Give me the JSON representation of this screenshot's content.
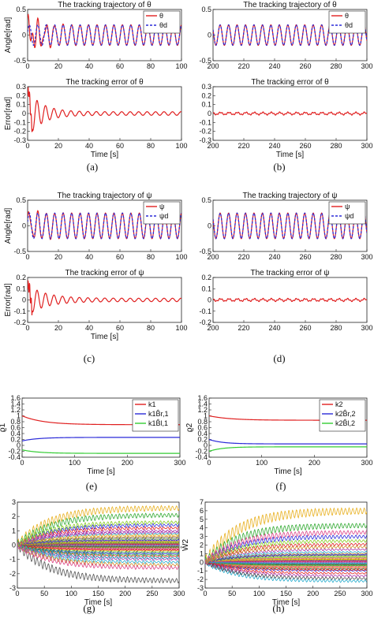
{
  "figure": {
    "captions": [
      "(a)",
      "(b)",
      "(c)",
      "(d)",
      "(e)",
      "(f)",
      "(g)",
      "(h)"
    ]
  },
  "chart_data": [
    {
      "id": "a_top",
      "type": "line",
      "title": "The tracking trajectory of θ",
      "ylabel": "Angle[rad]",
      "xlabel": "",
      "xlim": [
        0,
        100
      ],
      "ylim": [
        -0.5,
        0.5
      ],
      "xticks": [
        0,
        20,
        40,
        60,
        80,
        100
      ],
      "yticks": [
        -0.5,
        0,
        0.5
      ],
      "legend": {
        "position": "top-right",
        "entries": [
          "θ",
          "θd"
        ]
      },
      "series": [
        {
          "name": "θ",
          "color": "#e02020",
          "kind": "sine",
          "amp": 0.2,
          "period": 5.5,
          "transient_amp": 0.3,
          "transient_tau": 8,
          "x_start": 0,
          "x_end": 100
        },
        {
          "name": "θd",
          "color": "#2a2ad8",
          "dash": true,
          "kind": "sine",
          "amp": 0.2,
          "period": 5.5,
          "x_start": 0,
          "x_end": 100
        }
      ]
    },
    {
      "id": "a_bottom",
      "type": "line",
      "title": "The tracking error of θ",
      "ylabel": "Error[rad]",
      "xlabel": "Time [s]",
      "xlim": [
        0,
        100
      ],
      "ylim": [
        -0.3,
        0.3
      ],
      "xticks": [
        0,
        20,
        40,
        60,
        80,
        100
      ],
      "yticks": [
        -0.3,
        -0.2,
        -0.1,
        0,
        0.1,
        0.2,
        0.3
      ],
      "series": [
        {
          "name": "",
          "color": "#e02020",
          "kind": "decay",
          "amp": 0.25,
          "tau": 9,
          "period": 5.5,
          "floor": 0.02,
          "x_start": 0,
          "x_end": 100
        }
      ]
    },
    {
      "id": "b_top",
      "type": "line",
      "title": "The tracking trajectory of θ",
      "ylabel": "",
      "xlabel": "",
      "xlim": [
        200,
        300
      ],
      "ylim": [
        -0.5,
        0.5
      ],
      "xticks": [
        200,
        220,
        240,
        260,
        280,
        300
      ],
      "yticks": [
        -0.5,
        0,
        0.5
      ],
      "legend": {
        "position": "top-right",
        "entries": [
          "θ",
          "θd"
        ]
      },
      "series": [
        {
          "name": "θ",
          "color": "#e02020",
          "kind": "sine",
          "amp": 0.2,
          "period": 5.5,
          "x_start": 200,
          "x_end": 300
        },
        {
          "name": "θd",
          "color": "#2a2ad8",
          "dash": true,
          "kind": "sine",
          "amp": 0.2,
          "period": 5.5,
          "x_start": 200,
          "x_end": 300
        }
      ]
    },
    {
      "id": "b_bottom",
      "type": "line",
      "title": "The tracking error of θ",
      "ylabel": "",
      "xlabel": "Time [s]",
      "xlim": [
        200,
        300
      ],
      "ylim": [
        -0.3,
        0.3
      ],
      "xticks": [
        200,
        220,
        240,
        260,
        280,
        300
      ],
      "yticks": [
        -0.3,
        -0.2,
        -0.1,
        0,
        0.1,
        0.2,
        0.3
      ],
      "series": [
        {
          "name": "",
          "color": "#e02020",
          "kind": "noise",
          "amp": 0.012,
          "period": 5.5,
          "x_start": 200,
          "x_end": 300
        }
      ]
    },
    {
      "id": "c_top",
      "type": "line",
      "title": "The tracking trajectory of ψ",
      "ylabel": "Angle[rad]",
      "xlabel": "",
      "xlim": [
        0,
        100
      ],
      "ylim": [
        -0.5,
        0.5
      ],
      "xticks": [
        0,
        20,
        40,
        60,
        80,
        100
      ],
      "yticks": [
        -0.5,
        0,
        0.5
      ],
      "legend": {
        "position": "top-right",
        "entries": [
          "ψ",
          "ψd"
        ]
      },
      "series": [
        {
          "name": "ψ",
          "color": "#e02020",
          "kind": "sine",
          "amp": 0.25,
          "period": 5.5,
          "transient_amp": 0.1,
          "transient_tau": 8,
          "x_start": 0,
          "x_end": 100
        },
        {
          "name": "ψd",
          "color": "#2a2ad8",
          "dash": true,
          "kind": "sine",
          "amp": 0.25,
          "period": 5.5,
          "x_start": 0,
          "x_end": 100
        }
      ]
    },
    {
      "id": "c_bottom",
      "type": "line",
      "title": "The tracking error of ψ",
      "ylabel": "Error[rad]",
      "xlabel": "Time [s]",
      "xlim": [
        0,
        100
      ],
      "ylim": [
        -0.2,
        0.2
      ],
      "xticks": [
        0,
        20,
        40,
        60,
        80,
        100
      ],
      "yticks": [
        -0.2,
        -0.1,
        0,
        0.1,
        0.2
      ],
      "series": [
        {
          "name": "",
          "color": "#e02020",
          "kind": "decay",
          "amp": 0.12,
          "tau": 12,
          "period": 5.5,
          "floor": 0.015,
          "x_start": 0,
          "x_end": 100
        }
      ]
    },
    {
      "id": "d_top",
      "type": "line",
      "title": "The tracking trajectory of ψ",
      "ylabel": "",
      "xlabel": "",
      "xlim": [
        200,
        300
      ],
      "ylim": [
        -0.5,
        0.5
      ],
      "xticks": [
        200,
        220,
        240,
        260,
        280,
        300
      ],
      "yticks": [
        -0.5,
        0,
        0.5
      ],
      "legend": {
        "position": "top-right",
        "entries": [
          "ψ",
          "ψd"
        ]
      },
      "series": [
        {
          "name": "ψ",
          "color": "#e02020",
          "kind": "sine",
          "amp": 0.25,
          "period": 5.5,
          "x_start": 200,
          "x_end": 300
        },
        {
          "name": "ψd",
          "color": "#2a2ad8",
          "dash": true,
          "kind": "sine",
          "amp": 0.25,
          "period": 5.5,
          "x_start": 200,
          "x_end": 300
        }
      ]
    },
    {
      "id": "d_bottom",
      "type": "line",
      "title": "The tracking error of ψ",
      "ylabel": "",
      "xlabel": "",
      "xlim": [
        200,
        300
      ],
      "ylim": [
        -0.2,
        0.2
      ],
      "xticks": [
        200,
        220,
        240,
        260,
        280,
        300
      ],
      "yticks": [
        -0.2,
        -0.1,
        0,
        0.1,
        0.2
      ],
      "series": [
        {
          "name": "",
          "color": "#e02020",
          "kind": "noise",
          "amp": 0.01,
          "period": 5.5,
          "x_start": 200,
          "x_end": 300
        }
      ]
    },
    {
      "id": "e",
      "type": "line",
      "title": "",
      "ylabel": "ϱ1",
      "xlabel": "Time [s]",
      "xlim": [
        0,
        300
      ],
      "ylim": [
        -0.4,
        1.6
      ],
      "xticks": [
        0,
        100,
        200,
        300
      ],
      "yticks": [
        -0.4,
        -0.2,
        0,
        0.2,
        0.4,
        0.6,
        0.8,
        1,
        1.2,
        1.4,
        1.6
      ],
      "legend": {
        "position": "top-right",
        "entries": [
          "k1",
          "k1B̂r,1",
          "k1B̂l,1"
        ]
      },
      "series": [
        {
          "name": "k1",
          "color": "#e02020",
          "kind": "exp",
          "start": 1.0,
          "end": 0.7,
          "tau": 40,
          "x_start": 0,
          "x_end": 300
        },
        {
          "name": "k1B̂r,1",
          "color": "#2a2ad8",
          "kind": "exp",
          "start": 0.15,
          "end": 0.27,
          "tau": 30,
          "x_start": 0,
          "x_end": 300
        },
        {
          "name": "k1B̂l,1",
          "color": "#33cc33",
          "kind": "exp",
          "start": -0.15,
          "end": -0.27,
          "tau": 30,
          "x_start": 0,
          "x_end": 300
        }
      ]
    },
    {
      "id": "f",
      "type": "line",
      "title": "",
      "ylabel": "ϱ2",
      "xlabel": "Time [s]",
      "xlim": [
        0,
        300
      ],
      "ylim": [
        -0.4,
        1.6
      ],
      "xticks": [
        0,
        100,
        200,
        300
      ],
      "yticks": [
        -0.4,
        -0.2,
        0,
        0.2,
        0.4,
        0.6,
        0.8,
        1,
        1.2,
        1.4,
        1.6
      ],
      "legend": {
        "position": "top-right",
        "entries": [
          "k2",
          "k2B̂r,2",
          "k2B̂l,2"
        ]
      },
      "series": [
        {
          "name": "k2",
          "color": "#e02020",
          "kind": "exp",
          "start": 1.0,
          "end": 0.85,
          "tau": 40,
          "x_start": 0,
          "x_end": 300
        },
        {
          "name": "k2B̂r,2",
          "color": "#2a2ad8",
          "kind": "exp",
          "start": 0.2,
          "end": 0.05,
          "tau": 25,
          "x_start": 0,
          "x_end": 300
        },
        {
          "name": "k2B̂l,2",
          "color": "#33cc33",
          "kind": "exp",
          "start": -0.2,
          "end": -0.05,
          "tau": 25,
          "x_start": 0,
          "x_end": 300
        }
      ]
    },
    {
      "id": "g",
      "type": "line",
      "title": "",
      "ylabel": "Ŵ1",
      "xlabel": "Time [s]",
      "xlim": [
        0,
        300
      ],
      "ylim": [
        -3,
        3
      ],
      "xticks": [
        0,
        50,
        100,
        150,
        200,
        250,
        300
      ],
      "yticks": [
        -3,
        -2,
        -1,
        0,
        1,
        2,
        3
      ],
      "series_family": {
        "count": 40,
        "finals": [
          2.6,
          2.1,
          1.4,
          1.2,
          1.0,
          0.8,
          0.6,
          0.5,
          0.4,
          0.3,
          0.2,
          0.15,
          0.1,
          0.05,
          0.0,
          -0.05,
          -0.1,
          -0.15,
          -0.2,
          -0.3,
          -0.4,
          -0.5,
          -0.6,
          -0.8,
          -1.0,
          -1.2,
          -1.4,
          -2.5,
          0.25,
          -0.25,
          0.7,
          -0.7,
          0.35,
          -0.35,
          0.9,
          -0.9,
          0.12,
          -0.12,
          1.6,
          -1.6
        ],
        "colors": [
          "#e8b020",
          "#33aa33",
          "#2a2ad8",
          "#e02020",
          "#aa33aa",
          "#22aacc",
          "#cc8822",
          "#555555",
          "#88cc22",
          "#dd4488"
        ],
        "tau": 60,
        "ripple": 0.12
      }
    },
    {
      "id": "h",
      "type": "line",
      "title": "",
      "ylabel": "Ŵ2",
      "xlabel": "Time [s]",
      "xlim": [
        0,
        300
      ],
      "ylim": [
        -3,
        7
      ],
      "xticks": [
        0,
        50,
        100,
        150,
        200,
        250,
        300
      ],
      "yticks": [
        -3,
        -2,
        -1,
        0,
        1,
        2,
        3,
        4,
        5,
        6,
        7
      ],
      "series_family": {
        "count": 40,
        "finals": [
          6.0,
          4.3,
          3.0,
          2.1,
          1.5,
          1.2,
          1.0,
          0.8,
          0.6,
          0.5,
          0.4,
          0.3,
          0.2,
          0.1,
          0.0,
          -0.1,
          -0.2,
          -0.3,
          -0.4,
          -0.5,
          -0.6,
          -0.8,
          -1.0,
          -1.3,
          -1.6,
          -2.2,
          0.25,
          -0.25,
          0.7,
          -0.7,
          0.35,
          -0.35,
          0.9,
          -0.9,
          0.15,
          -0.15,
          1.8,
          -1.9,
          2.5,
          3.5
        ],
        "colors": [
          "#e8b020",
          "#33aa33",
          "#2a2ad8",
          "#e02020",
          "#aa33aa",
          "#22aacc",
          "#cc8822",
          "#555555",
          "#88cc22",
          "#dd4488"
        ],
        "tau": 60,
        "ripple": 0.12
      }
    }
  ]
}
